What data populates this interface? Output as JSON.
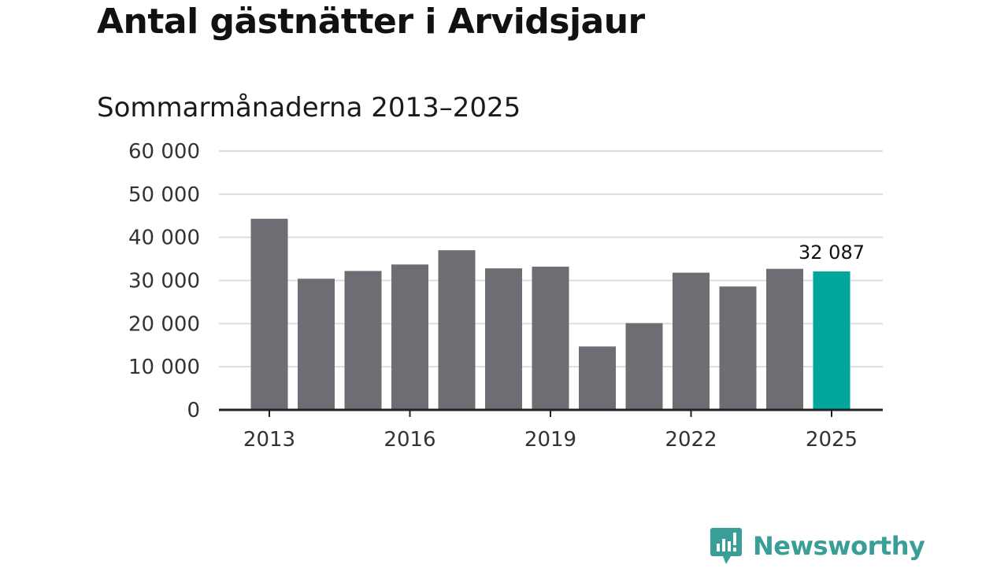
{
  "header": {
    "title": "Antal gästnätter i Arvidsjaur",
    "subtitle": "Sommarmånaderna 2013–2025"
  },
  "brand": {
    "name": "Newsworthy",
    "color": "#3a9e98"
  },
  "colors": {
    "bar": "#6e6d73",
    "highlight": "#00a79a",
    "grid": "#dcdcdc",
    "axis": "#222222"
  },
  "chart_data": {
    "type": "bar",
    "title": "Antal gästnätter i Arvidsjaur",
    "subtitle": "Sommarmånaderna 2013–2025",
    "xlabel": "",
    "ylabel": "",
    "categories": [
      "2013",
      "2014",
      "2015",
      "2016",
      "2017",
      "2018",
      "2019",
      "2020",
      "2021",
      "2022",
      "2023",
      "2024",
      "2025"
    ],
    "values": [
      44300,
      30400,
      32200,
      33700,
      37000,
      32800,
      33200,
      14700,
      20100,
      31800,
      28600,
      32700,
      32087
    ],
    "highlight_index": 12,
    "highlight_label": "32 087",
    "ylim": [
      0,
      60000
    ],
    "yticks": [
      0,
      10000,
      20000,
      30000,
      40000,
      50000,
      60000
    ],
    "ytick_labels": [
      "0",
      "10 000",
      "20 000",
      "30 000",
      "40 000",
      "50 000",
      "60 000"
    ],
    "xtick_labels": [
      "2013",
      "2016",
      "2019",
      "2022",
      "2025"
    ],
    "xtick_indices": [
      0,
      3,
      6,
      9,
      12
    ],
    "grid": true,
    "legend": "none"
  }
}
